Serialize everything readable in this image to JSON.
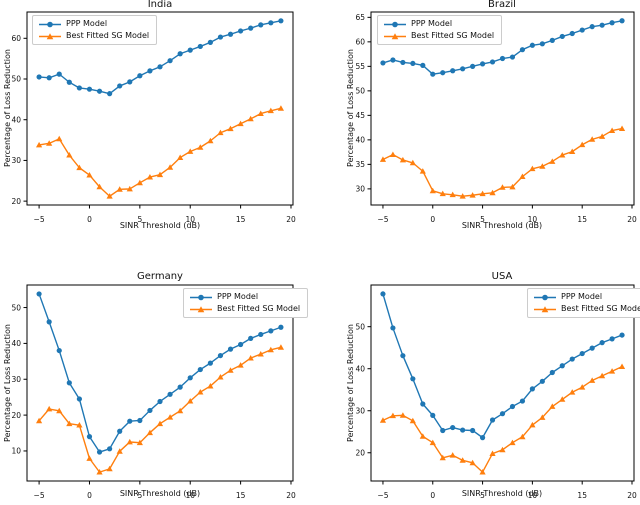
{
  "figure": {
    "type": "matplotlib-2x2-line-figure",
    "background": "#ffffff",
    "axis_color": "#000000",
    "legend_border_color": "#cccccc",
    "series_colors": {
      "ppp": "#1f77b4",
      "sg": "#ff7f0e"
    }
  },
  "chart_data": [
    {
      "type": "line",
      "title": "India",
      "xlabel": "SINR Threshold (dB)",
      "ylabel": "Percentage of Loss Reduction",
      "x": [
        -5,
        -4,
        -3,
        -2,
        -1,
        0,
        1,
        2,
        3,
        4,
        5,
        6,
        7,
        8,
        9,
        10,
        11,
        12,
        13,
        14,
        15,
        16,
        17,
        18,
        19
      ],
      "series": [
        {
          "name": "PPP Model",
          "color": "#1f77b4",
          "marker": "circle",
          "values": [
            50.5,
            50.3,
            51.2,
            49.2,
            47.8,
            47.5,
            47.0,
            46.4,
            48.3,
            49.3,
            50.8,
            52.0,
            53.0,
            54.5,
            56.2,
            57.1,
            58.0,
            59.0,
            60.3,
            61.0,
            61.8,
            62.5,
            63.3,
            63.8,
            64.3
          ]
        },
        {
          "name": "Best Fitted SG Model",
          "color": "#ff7f0e",
          "marker": "triangle",
          "values": [
            33.8,
            34.2,
            35.3,
            31.3,
            28.2,
            26.4,
            23.5,
            21.2,
            22.9,
            23.0,
            24.5,
            25.9,
            26.5,
            28.3,
            30.7,
            32.2,
            33.2,
            34.8,
            36.8,
            37.8,
            39.0,
            40.2,
            41.5,
            42.2,
            42.8
          ]
        }
      ],
      "xlim": [
        -6.2,
        20.2
      ],
      "ylim": [
        19.05,
        66.46
      ],
      "xticks": [
        -5,
        0,
        5,
        10,
        15,
        20
      ],
      "yticks": [
        20,
        30,
        40,
        50,
        60
      ],
      "grid": false,
      "legend_position": "upper-left"
    },
    {
      "type": "line",
      "title": "Brazil",
      "xlabel": "SINR Threshold (dB)",
      "ylabel": "Percentage of Loss Reduction",
      "x": [
        -5,
        -4,
        -3,
        -2,
        -1,
        0,
        1,
        2,
        3,
        4,
        5,
        6,
        7,
        8,
        9,
        10,
        11,
        12,
        13,
        14,
        15,
        16,
        17,
        18,
        19
      ],
      "series": [
        {
          "name": "PPP Model",
          "color": "#1f77b4",
          "marker": "circle",
          "values": [
            55.7,
            56.3,
            55.8,
            55.6,
            55.2,
            53.4,
            53.7,
            54.1,
            54.5,
            55.0,
            55.5,
            55.9,
            56.6,
            56.9,
            58.4,
            59.3,
            59.6,
            60.3,
            61.1,
            61.7,
            62.4,
            63.1,
            63.4,
            63.9,
            64.3
          ]
        },
        {
          "name": "Best Fitted SG Model",
          "color": "#ff7f0e",
          "marker": "triangle",
          "values": [
            36.0,
            37.0,
            35.9,
            35.3,
            33.6,
            29.6,
            29.0,
            28.8,
            28.5,
            28.7,
            29.0,
            29.2,
            30.3,
            30.4,
            32.5,
            34.1,
            34.6,
            35.6,
            36.9,
            37.6,
            39.0,
            40.1,
            40.7,
            41.9,
            42.3
          ]
        }
      ],
      "xlim": [
        -6.2,
        20.2
      ],
      "ylim": [
        26.71,
        66.09
      ],
      "xticks": [
        -5,
        0,
        5,
        10,
        15,
        20
      ],
      "yticks": [
        30,
        35,
        40,
        45,
        50,
        55,
        60,
        65
      ],
      "grid": false,
      "legend_position": "upper-left"
    },
    {
      "type": "line",
      "title": "Germany",
      "xlabel": "SINR Threshold (dB)",
      "ylabel": "Percentage of Loss Reduction",
      "x": [
        -5,
        -4,
        -3,
        -2,
        -1,
        0,
        1,
        2,
        3,
        4,
        5,
        6,
        7,
        8,
        9,
        10,
        11,
        12,
        13,
        14,
        15,
        16,
        17,
        18,
        19
      ],
      "series": [
        {
          "name": "PPP Model",
          "color": "#1f77b4",
          "marker": "circle",
          "values": [
            53.8,
            46.0,
            38.0,
            29.0,
            24.5,
            14.0,
            9.7,
            10.6,
            15.5,
            18.3,
            18.5,
            21.3,
            23.8,
            25.8,
            27.8,
            30.4,
            32.7,
            34.5,
            36.6,
            38.4,
            39.7,
            41.4,
            42.5,
            43.5,
            44.5
          ]
        },
        {
          "name": "Best Fitted SG Model",
          "color": "#ff7f0e",
          "marker": "triangle",
          "values": [
            18.4,
            21.7,
            21.2,
            17.6,
            17.2,
            7.9,
            4.1,
            5.0,
            9.9,
            12.5,
            12.3,
            15.1,
            17.6,
            19.4,
            21.2,
            23.9,
            26.4,
            28.1,
            30.6,
            32.5,
            33.9,
            35.9,
            37.0,
            38.2,
            38.9
          ]
        }
      ],
      "xlim": [
        -6.2,
        20.2
      ],
      "ylim": [
        1.62,
        56.29
      ],
      "xticks": [
        -5,
        0,
        5,
        10,
        15,
        20
      ],
      "yticks": [
        10,
        20,
        30,
        40,
        50
      ],
      "grid": false,
      "legend_position": "upper-right"
    },
    {
      "type": "line",
      "title": "USA",
      "xlabel": "SINR Threshold (dB)",
      "ylabel": "Percentage of Loss Reduction",
      "x": [
        -5,
        -4,
        -3,
        -2,
        -1,
        0,
        1,
        2,
        3,
        4,
        5,
        6,
        7,
        8,
        9,
        10,
        11,
        12,
        13,
        14,
        15,
        16,
        17,
        18,
        19
      ],
      "series": [
        {
          "name": "PPP Model",
          "color": "#1f77b4",
          "marker": "circle",
          "values": [
            57.8,
            49.7,
            43.1,
            37.6,
            31.6,
            28.9,
            25.3,
            26.0,
            25.4,
            25.3,
            23.6,
            27.8,
            29.3,
            31.0,
            32.3,
            35.2,
            37.0,
            39.1,
            40.7,
            42.3,
            43.6,
            44.9,
            46.2,
            47.1,
            48.0
          ]
        },
        {
          "name": "Best Fitted SG Model",
          "color": "#ff7f0e",
          "marker": "triangle",
          "values": [
            27.7,
            28.8,
            28.9,
            27.6,
            23.9,
            22.4,
            18.8,
            19.4,
            18.2,
            17.6,
            15.4,
            19.8,
            20.7,
            22.4,
            23.8,
            26.6,
            28.4,
            31.0,
            32.7,
            34.4,
            35.6,
            37.2,
            38.3,
            39.4,
            40.5
          ]
        }
      ],
      "xlim": [
        -6.2,
        20.2
      ],
      "ylim": [
        13.28,
        59.92
      ],
      "xticks": [
        -5,
        0,
        5,
        10,
        15,
        20
      ],
      "yticks": [
        20,
        30,
        40,
        50
      ],
      "grid": false,
      "legend_position": "upper-right"
    }
  ]
}
